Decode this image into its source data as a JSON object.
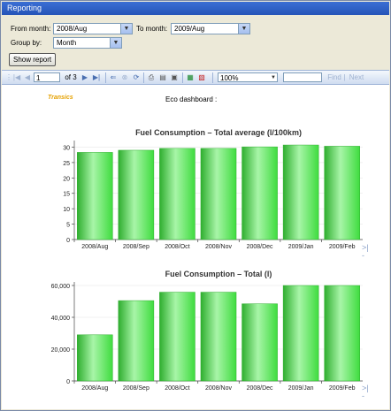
{
  "window": {
    "title": "Reporting"
  },
  "form": {
    "from_label": "From month:",
    "from_value": "2008/Aug",
    "to_label": "To month:",
    "to_value": "2009/Aug",
    "group_label": "Group by:",
    "group_value": "Month",
    "show_button": "Show report"
  },
  "toolbar": {
    "page_value": "1",
    "of_pages": "of 3",
    "zoom_value": "100%",
    "search_value": "",
    "find_label": "Find",
    "separator": "|",
    "next_label": "Next"
  },
  "report": {
    "brand": "Transics",
    "title": "Eco dashboard :",
    "collapse_marker": ">|\n-"
  },
  "colors": {
    "bar_top": "#a8f5a8",
    "bar_main": "#3fdc3f",
    "bar_edge": "#2fae2f"
  },
  "chart_data": [
    {
      "type": "bar",
      "title": "Fuel Consumption – Total average (l/100km)",
      "categories": [
        "2008/Aug",
        "2008/Sep",
        "2008/Oct",
        "2008/Nov",
        "2008/Dec",
        "2009/Jan",
        "2009/Feb"
      ],
      "values": [
        28.3,
        29.0,
        29.6,
        29.6,
        30.1,
        30.7,
        30.3
      ],
      "yticks": [
        "0",
        "5",
        "10",
        "15",
        "20",
        "25",
        "30"
      ],
      "ylim": [
        0,
        31
      ],
      "grid": true
    },
    {
      "type": "bar",
      "title": "Fuel Consumption – Total (l)",
      "categories": [
        "2008/Aug",
        "2008/Sep",
        "2008/Oct",
        "2008/Nov",
        "2008/Dec",
        "2009/Jan",
        "2009/Feb"
      ],
      "values": [
        29000,
        50500,
        55800,
        55800,
        48500,
        60000,
        60000
      ],
      "yticks": [
        "0",
        "20,000",
        "40,000",
        "60,000"
      ],
      "ylim": [
        0,
        60000
      ],
      "grid": true
    }
  ]
}
